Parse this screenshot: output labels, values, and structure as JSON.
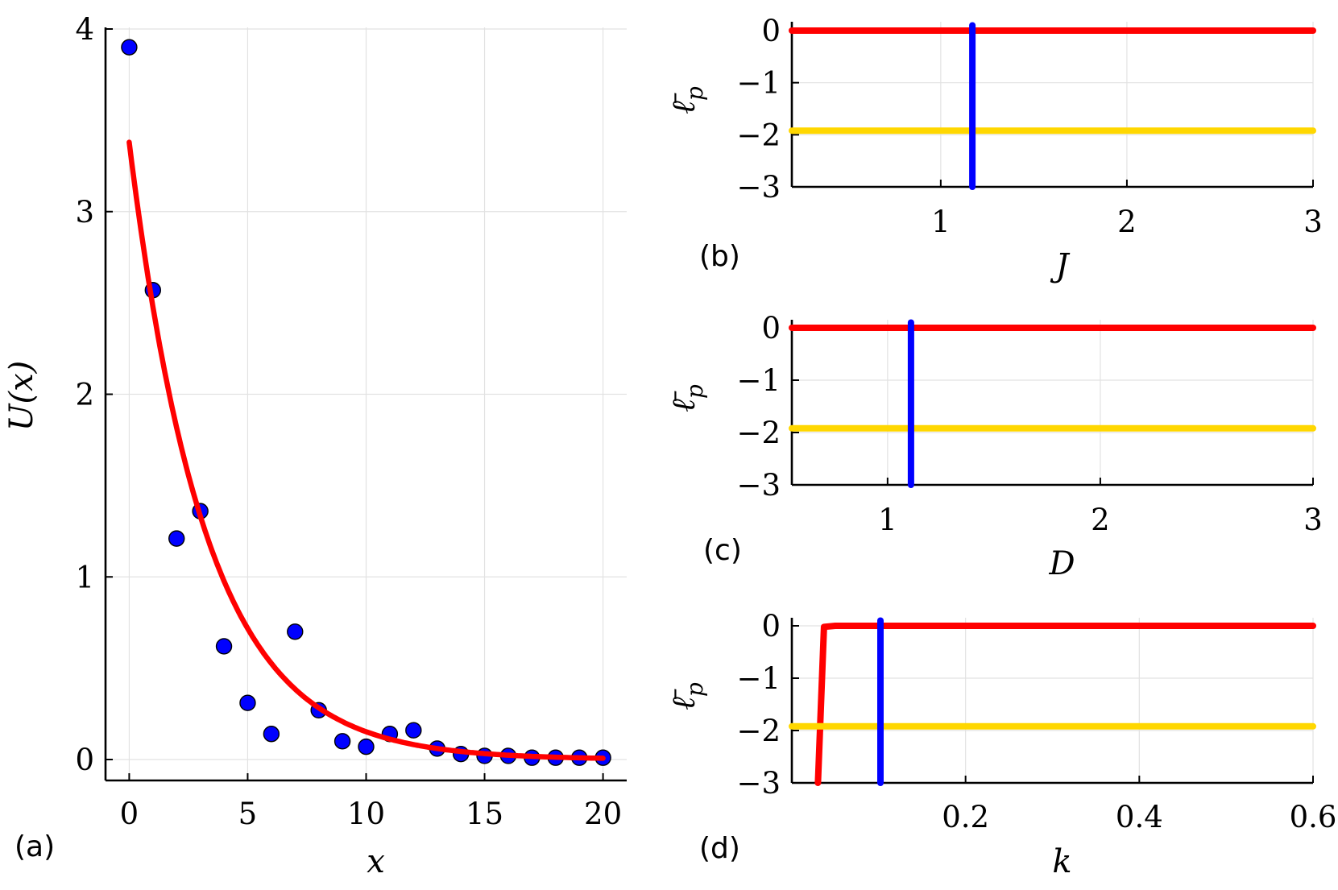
{
  "chart_data": [
    {
      "panel": "(a)",
      "type": "scatter",
      "xlabel": "x",
      "ylabel": "U(x)",
      "xlim": [
        -1,
        21
      ],
      "ylim": [
        -0.11,
        4.06
      ],
      "xticks": [
        0,
        5,
        10,
        15,
        20
      ],
      "xtick_labels": [
        "0",
        "5",
        "10",
        "15",
        "20"
      ],
      "yticks": [
        0,
        1,
        2,
        3,
        4
      ],
      "ytick_labels": [
        "0",
        "1",
        "2",
        "3",
        "4"
      ],
      "grid": true,
      "series": [
        {
          "name": "data",
          "kind": "scatter",
          "color": "#0000ff",
          "x": [
            0,
            1,
            2,
            3,
            4,
            5,
            6,
            7,
            8,
            9,
            10,
            11,
            12,
            13,
            14,
            15,
            16,
            17,
            18,
            19,
            20
          ],
          "y": [
            3.9,
            2.57,
            1.21,
            1.36,
            0.62,
            0.31,
            0.14,
            0.7,
            0.27,
            0.1,
            0.07,
            0.14,
            0.16,
            0.06,
            0.03,
            0.02,
            0.02,
            0.01,
            0.01,
            0.01,
            0.01
          ]
        },
        {
          "name": "fit",
          "kind": "line",
          "color": "#ff0000",
          "formula": "3.38*exp(-0.31*x)",
          "x": [
            0,
            1,
            2,
            3,
            4,
            5,
            6,
            7,
            8,
            9,
            10,
            11,
            12,
            13,
            14,
            15,
            16,
            17,
            18,
            19,
            20
          ],
          "y": [
            3.38,
            2.48,
            1.82,
            1.33,
            0.98,
            0.72,
            0.53,
            0.39,
            0.28,
            0.21,
            0.15,
            0.11,
            0.08,
            0.06,
            0.04,
            0.03,
            0.02,
            0.02,
            0.01,
            0.01,
            0.01
          ]
        }
      ]
    },
    {
      "panel": "(b)",
      "type": "line",
      "xlabel": "J",
      "ylabel": "ℓ̄_p",
      "ylabel_main": "ℓ",
      "ylabel_sub": "p",
      "xlim": [
        0.2,
        3.0
      ],
      "ylim": [
        -3,
        0
      ],
      "xticks": [
        1,
        2,
        3
      ],
      "xtick_labels": [
        "1",
        "2",
        "3"
      ],
      "yticks": [
        0,
        -1,
        -2,
        -3
      ],
      "ytick_labels": [
        "0",
        "−1",
        "−2",
        "−3"
      ],
      "grid": true,
      "series": [
        {
          "name": "red",
          "color": "#ff0000",
          "x": [
            0.2,
            3.0
          ],
          "y": [
            0,
            0
          ]
        },
        {
          "name": "gold",
          "color": "#ffd700",
          "x": [
            0.2,
            3.0
          ],
          "y": [
            -1.92,
            -1.92
          ]
        },
        {
          "name": "blue",
          "color": "#0000ff",
          "x": [
            1.17,
            1.17
          ],
          "y": [
            -3,
            0.1
          ]
        }
      ]
    },
    {
      "panel": "(c)",
      "type": "line",
      "xlabel": "D",
      "ylabel": "ℓ̄_p",
      "ylabel_main": "ℓ",
      "ylabel_sub": "p",
      "xlim": [
        0.55,
        3.0
      ],
      "ylim": [
        -3,
        0
      ],
      "xticks": [
        1,
        2,
        3
      ],
      "xtick_labels": [
        "1",
        "2",
        "3"
      ],
      "yticks": [
        0,
        -1,
        -2,
        -3
      ],
      "ytick_labels": [
        "0",
        "−1",
        "−2",
        "−3"
      ],
      "grid": true,
      "series": [
        {
          "name": "red",
          "color": "#ff0000",
          "x": [
            0.55,
            3.0
          ],
          "y": [
            0,
            0
          ]
        },
        {
          "name": "gold",
          "color": "#ffd700",
          "x": [
            0.55,
            3.0
          ],
          "y": [
            -1.92,
            -1.92
          ]
        },
        {
          "name": "blue",
          "color": "#0000ff",
          "x": [
            1.11,
            1.11
          ],
          "y": [
            -3,
            0.1
          ]
        }
      ]
    },
    {
      "panel": "(d)",
      "type": "line",
      "xlabel": "k",
      "ylabel": "ℓ̄_p",
      "ylabel_main": "ℓ",
      "ylabel_sub": "p",
      "xlim": [
        0.0,
        0.6
      ],
      "ylim": [
        -3,
        0
      ],
      "xticks": [
        0.2,
        0.4,
        0.6
      ],
      "xtick_labels": [
        "0.2",
        "0.4",
        "0.6"
      ],
      "yticks": [
        0,
        -1,
        -2,
        -3
      ],
      "ytick_labels": [
        "0",
        "−1",
        "−2",
        "−3"
      ],
      "grid": true,
      "series": [
        {
          "name": "red",
          "color": "#ff0000",
          "x": [
            0.03,
            0.037,
            0.05,
            0.6
          ],
          "y": [
            -3,
            -0.02,
            0,
            0
          ]
        },
        {
          "name": "gold",
          "color": "#ffd700",
          "x": [
            0.0,
            0.6
          ],
          "y": [
            -1.92,
            -1.92
          ]
        },
        {
          "name": "blue",
          "color": "#0000ff",
          "x": [
            0.102,
            0.102
          ],
          "y": [
            -3,
            0.1
          ]
        }
      ]
    }
  ]
}
